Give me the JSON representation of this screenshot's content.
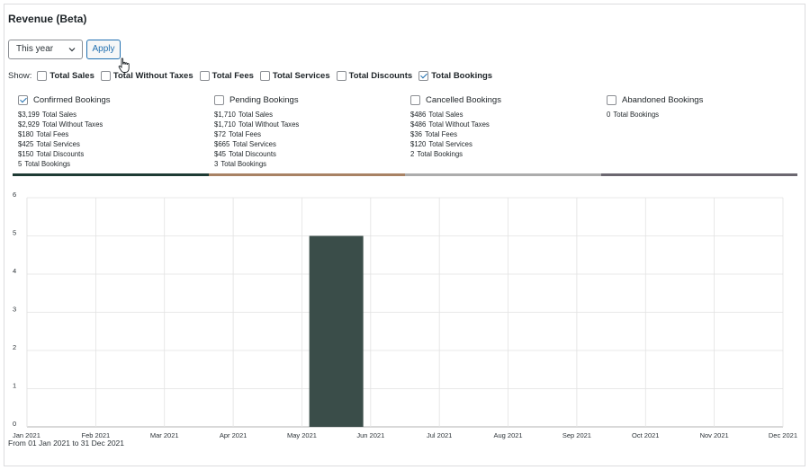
{
  "title": "Revenue (Beta)",
  "period": {
    "selected": "This year"
  },
  "apply_label": "Apply",
  "show": {
    "label": "Show:",
    "filters": [
      {
        "label": "Total Sales",
        "checked": false
      },
      {
        "label": "Total Without Taxes",
        "checked": false
      },
      {
        "label": "Total Fees",
        "checked": false
      },
      {
        "label": "Total Services",
        "checked": false
      },
      {
        "label": "Total Discounts",
        "checked": false
      },
      {
        "label": "Total Bookings",
        "checked": true
      }
    ]
  },
  "groups": [
    {
      "name": "Confirmed Bookings",
      "checked": true,
      "color": "#1e3b34",
      "stats": [
        [
          "$3,199",
          "Total Sales"
        ],
        [
          "$2,929",
          "Total Without Taxes"
        ],
        [
          "$180",
          "Total Fees"
        ],
        [
          "$425",
          "Total Services"
        ],
        [
          "$150",
          "Total Discounts"
        ],
        [
          "5",
          "Total Bookings"
        ]
      ]
    },
    {
      "name": "Pending Bookings",
      "checked": false,
      "color": "#a88264",
      "stats": [
        [
          "$1,710",
          "Total Sales"
        ],
        [
          "$1,710",
          "Total Without Taxes"
        ],
        [
          "$72",
          "Total Fees"
        ],
        [
          "$665",
          "Total Services"
        ],
        [
          "$45",
          "Total Discounts"
        ],
        [
          "3",
          "Total Bookings"
        ]
      ]
    },
    {
      "name": "Cancelled Bookings",
      "checked": false,
      "color": "#acacac",
      "stats": [
        [
          "$486",
          "Total Sales"
        ],
        [
          "$486",
          "Total Without Taxes"
        ],
        [
          "$36",
          "Total Fees"
        ],
        [
          "$120",
          "Total Services"
        ],
        [
          "2",
          "Total Bookings"
        ]
      ]
    },
    {
      "name": "Abandoned Bookings",
      "checked": false,
      "color": "#6b6770",
      "stats": [
        [
          "0",
          "Total Bookings"
        ]
      ]
    }
  ],
  "chart_data": {
    "type": "bar",
    "categories": [
      "Jan 2021",
      "Feb 2021",
      "Mar 2021",
      "Apr 2021",
      "May 2021",
      "Jun 2021",
      "Jul 2021",
      "Aug 2021",
      "Sep 2021",
      "Oct 2021",
      "Nov 2021",
      "Dec 2021"
    ],
    "series": [
      {
        "name": "Confirmed Bookings",
        "values": [
          0,
          0,
          0,
          0,
          5,
          0,
          0,
          0,
          0,
          0,
          0,
          0
        ]
      }
    ],
    "ylim": [
      0,
      6
    ],
    "yticks": [
      "0",
      "1",
      "2",
      "3",
      "4",
      "5",
      "6"
    ],
    "bar_color": "#3a4d49",
    "grid": true
  },
  "range_text": "From 01 Jan 2021 to 31 Dec 2021"
}
